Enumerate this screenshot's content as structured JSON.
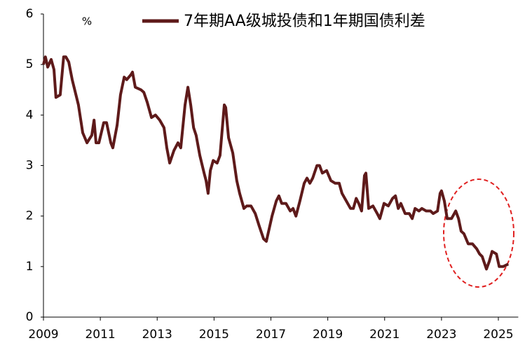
{
  "chart_data": {
    "type": "line",
    "ylabel": "%",
    "legend": "top",
    "xlim": [
      2009,
      2025.7
    ],
    "xticks": [
      2009,
      2011,
      2013,
      2015,
      2017,
      2019,
      2021,
      2023,
      2025
    ],
    "ylim": [
      0,
      6
    ],
    "yticks": [
      0,
      1,
      2,
      3,
      4,
      5,
      6
    ],
    "grid": false,
    "x": [
      2009.0,
      2009.07,
      2009.15,
      2009.27,
      2009.37,
      2009.44,
      2009.59,
      2009.71,
      2009.79,
      2009.89,
      2010.01,
      2010.23,
      2010.38,
      2010.53,
      2010.7,
      2010.78,
      2010.85,
      2010.95,
      2011.12,
      2011.22,
      2011.37,
      2011.44,
      2011.59,
      2011.71,
      2011.84,
      2011.93,
      2012.08,
      2012.13,
      2012.23,
      2012.43,
      2012.53,
      2012.65,
      2012.8,
      2012.94,
      2013.09,
      2013.24,
      2013.34,
      2013.44,
      2013.59,
      2013.73,
      2013.83,
      2013.98,
      2014.08,
      2014.18,
      2014.28,
      2014.37,
      2014.5,
      2014.65,
      2014.72,
      2014.79,
      2014.87,
      2014.97,
      2015.11,
      2015.21,
      2015.36,
      2015.41,
      2015.51,
      2015.66,
      2015.8,
      2015.9,
      2016.05,
      2016.15,
      2016.3,
      2016.45,
      2016.59,
      2016.74,
      2016.84,
      2017.04,
      2017.19,
      2017.28,
      2017.38,
      2017.53,
      2017.68,
      2017.78,
      2017.88,
      2018.02,
      2018.17,
      2018.27,
      2018.37,
      2018.47,
      2018.62,
      2018.71,
      2018.81,
      2018.96,
      2019.11,
      2019.26,
      2019.4,
      2019.5,
      2019.65,
      2019.8,
      2019.9,
      2020.0,
      2020.09,
      2020.19,
      2020.29,
      2020.34,
      2020.44,
      2020.59,
      2020.74,
      2020.83,
      2020.98,
      2021.13,
      2021.28,
      2021.38,
      2021.48,
      2021.57,
      2021.72,
      2021.87,
      2021.97,
      2022.07,
      2022.21,
      2022.31,
      2022.46,
      2022.61,
      2022.71,
      2022.86,
      2022.95,
      2023.0,
      2023.1,
      2023.2,
      2023.35,
      2023.5,
      2023.6,
      2023.69,
      2023.79,
      2023.94,
      2024.09,
      2024.24,
      2024.34,
      2024.43,
      2024.58,
      2024.68,
      2024.78,
      2024.93,
      2025.03,
      2025.17,
      2025.35
    ],
    "series": [
      {
        "name": "7年期AA级城投债和1年期国债利差",
        "color": "#5e1a1a",
        "values": [
          5.0,
          5.15,
          4.95,
          5.1,
          4.9,
          4.35,
          4.4,
          5.15,
          5.15,
          5.05,
          4.7,
          4.2,
          3.65,
          3.45,
          3.6,
          3.9,
          3.45,
          3.45,
          3.85,
          3.85,
          3.45,
          3.35,
          3.8,
          4.4,
          4.75,
          4.7,
          4.8,
          4.85,
          4.55,
          4.5,
          4.45,
          4.25,
          3.95,
          4.0,
          3.9,
          3.75,
          3.35,
          3.05,
          3.3,
          3.45,
          3.35,
          4.2,
          4.55,
          4.2,
          3.75,
          3.6,
          3.2,
          2.85,
          2.7,
          2.45,
          2.9,
          3.1,
          3.05,
          3.2,
          4.2,
          4.15,
          3.55,
          3.25,
          2.7,
          2.45,
          2.15,
          2.2,
          2.2,
          2.05,
          1.8,
          1.55,
          1.5,
          2.0,
          2.3,
          2.4,
          2.25,
          2.25,
          2.1,
          2.15,
          2.0,
          2.3,
          2.65,
          2.75,
          2.65,
          2.75,
          3.0,
          3.0,
          2.85,
          2.9,
          2.7,
          2.65,
          2.65,
          2.45,
          2.3,
          2.15,
          2.15,
          2.35,
          2.25,
          2.1,
          2.8,
          2.85,
          2.15,
          2.2,
          2.05,
          1.95,
          2.25,
          2.2,
          2.35,
          2.4,
          2.15,
          2.25,
          2.05,
          2.05,
          1.95,
          2.15,
          2.1,
          2.15,
          2.1,
          2.1,
          2.05,
          2.1,
          2.45,
          2.5,
          2.3,
          1.95,
          1.95,
          2.1,
          1.95,
          1.7,
          1.65,
          1.45,
          1.45,
          1.35,
          1.25,
          1.2,
          0.95,
          1.1,
          1.3,
          1.25,
          1.0,
          1.0,
          1.05
        ]
      }
    ]
  }
}
